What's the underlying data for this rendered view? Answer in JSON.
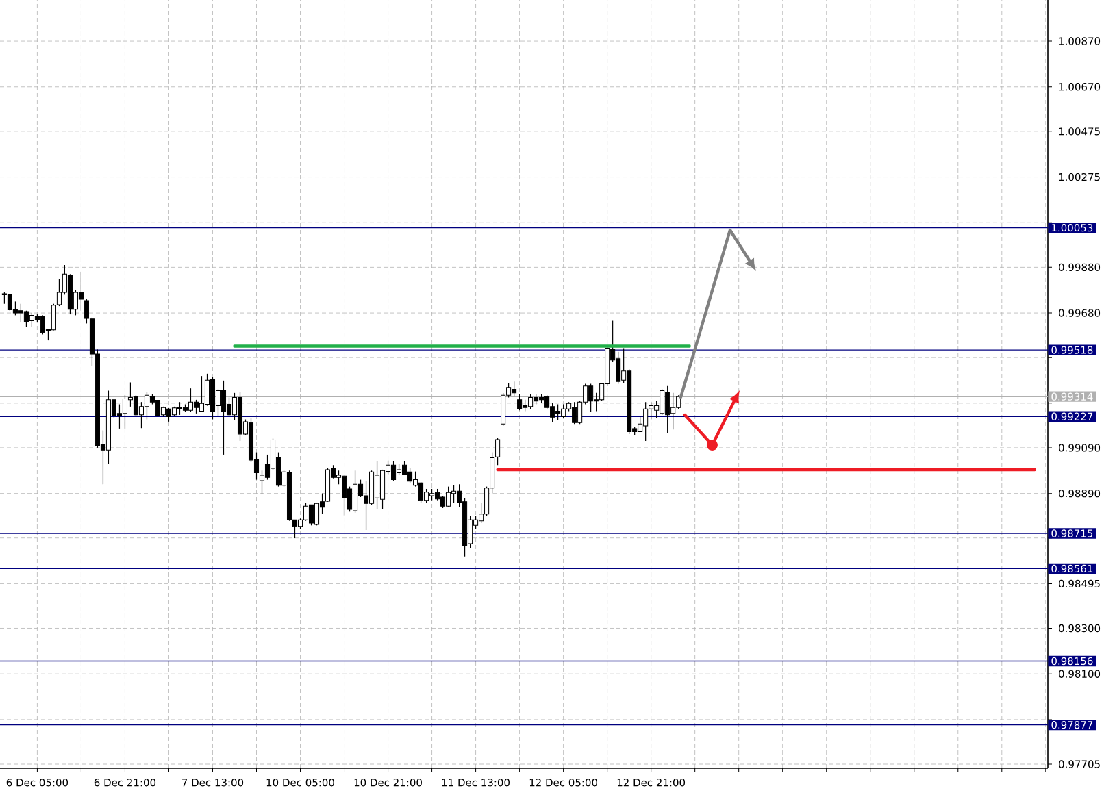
{
  "chart_data": {
    "type": "candlestick",
    "categories": [
      null,
      null,
      null,
      null,
      null,
      null,
      "6 Dec 05:00",
      null,
      null,
      null,
      null,
      null,
      null,
      null,
      null,
      null,
      null,
      null,
      null,
      null,
      null,
      null,
      "6 Dec 21:00",
      null,
      null,
      null,
      null,
      null,
      null,
      null,
      null,
      null,
      null,
      null,
      null,
      null,
      null,
      null,
      "7 Dec 13:00",
      null,
      null,
      null,
      null,
      null,
      null,
      null,
      null,
      null,
      null,
      null,
      null,
      null,
      null,
      null,
      "10 Dec 05:00",
      null,
      null,
      null,
      null,
      null,
      null,
      null,
      null,
      null,
      null,
      null,
      null,
      null,
      null,
      null,
      "10 Dec 21:00",
      null,
      null,
      null,
      null,
      null,
      null,
      null,
      null,
      null,
      null,
      null,
      null,
      null,
      null,
      null,
      "11 Dec 13:00",
      null,
      null,
      null,
      null,
      null,
      null,
      null,
      null,
      null,
      null,
      null,
      null,
      null,
      null,
      null,
      "12 Dec 05:00",
      null,
      null,
      null,
      null,
      null,
      null,
      null,
      null,
      null,
      null,
      null,
      null,
      null,
      null,
      null,
      "12 Dec 21:00",
      null,
      null,
      null,
      null,
      null,
      null,
      null,
      null,
      null,
      null,
      null,
      null,
      null,
      null,
      null,
      null,
      null,
      null,
      null,
      null,
      null,
      null,
      null,
      null,
      null,
      null,
      null,
      null,
      null,
      null,
      null,
      null,
      null,
      null,
      null,
      null,
      null,
      null,
      null,
      null,
      null,
      null,
      null,
      null,
      null,
      null,
      null,
      null,
      null,
      null,
      null,
      null,
      null,
      null,
      null,
      null,
      null,
      null,
      null,
      null,
      null,
      null,
      null,
      null,
      null,
      null,
      null,
      null,
      null,
      null,
      null,
      null
    ],
    "ohlc": [
      [
        0.99764,
        0.9977,
        0.9972,
        0.9976
      ],
      [
        0.9976,
        0.99764,
        0.9969,
        0.99694
      ],
      [
        0.99694,
        0.9973,
        0.9967,
        0.9968
      ],
      [
        0.9969,
        0.9972,
        0.9964,
        0.9968
      ],
      [
        0.99686,
        0.9969,
        0.9962,
        0.9964
      ],
      [
        0.99646,
        0.9968,
        0.9962,
        0.9967
      ],
      [
        0.99666,
        0.99674,
        0.9964,
        0.9965
      ],
      [
        0.99666,
        0.9967,
        0.99586,
        0.99594
      ],
      [
        0.9961,
        0.9961,
        0.9956,
        0.99604
      ],
      [
        0.99606,
        0.9972,
        0.99604,
        0.99714
      ],
      [
        0.99716,
        0.9983,
        0.9971,
        0.9977
      ],
      [
        0.9977,
        0.9989,
        0.9976,
        0.9985
      ],
      [
        0.99846,
        0.9985,
        0.99674,
        0.99696
      ],
      [
        0.99696,
        0.9978,
        0.9967,
        0.9977
      ],
      [
        0.9977,
        0.9986,
        0.9969,
        0.9974
      ],
      [
        0.99734,
        0.9974,
        0.99634,
        0.99656
      ],
      [
        0.99654,
        0.9966,
        0.99446,
        0.995
      ],
      [
        0.995,
        0.9952,
        0.9909,
        0.991
      ],
      [
        0.99106,
        0.99166,
        0.9893,
        0.9908
      ],
      [
        0.9908,
        0.9934,
        0.9902,
        0.993
      ],
      [
        0.993,
        0.993,
        0.9922,
        0.9923
      ],
      [
        0.9924,
        0.9928,
        0.99174,
        0.9923
      ],
      [
        0.9924,
        0.9932,
        0.99174,
        0.99304
      ],
      [
        0.993,
        0.99376,
        0.9927,
        0.9931
      ],
      [
        0.99314,
        0.9932,
        0.9923,
        0.99234
      ],
      [
        0.99234,
        0.9929,
        0.99176,
        0.9927
      ],
      [
        0.9927,
        0.99334,
        0.99214,
        0.9932
      ],
      [
        0.99314,
        0.99326,
        0.9928,
        0.9929
      ],
      [
        0.99298,
        0.993,
        0.99226,
        0.9923
      ],
      [
        0.99234,
        0.9927,
        0.99226,
        0.99266
      ],
      [
        0.9926,
        0.99264,
        0.99204,
        0.99226
      ],
      [
        0.99234,
        0.9927,
        0.9923,
        0.99264
      ],
      [
        0.99266,
        0.9929,
        0.99234,
        0.9926
      ],
      [
        0.99266,
        0.9928,
        0.99246,
        0.99254
      ],
      [
        0.99254,
        0.9935,
        0.99246,
        0.9929
      ],
      [
        0.9929,
        0.993,
        0.9924,
        0.99266
      ],
      [
        0.9925,
        0.99404,
        0.9925,
        0.99284
      ],
      [
        0.9928,
        0.99414,
        0.99274,
        0.99386
      ],
      [
        0.9939,
        0.994,
        0.99214,
        0.9925
      ],
      [
        0.99274,
        0.99346,
        0.9923,
        0.9934
      ],
      [
        0.9934,
        0.99384,
        0.9906,
        0.9925
      ],
      [
        0.9928,
        0.9931,
        0.99226,
        0.99234
      ],
      [
        0.99234,
        0.9933,
        0.9921,
        0.9931
      ],
      [
        0.9931,
        0.99334,
        0.9912,
        0.9915
      ],
      [
        0.9915,
        0.99214,
        0.99146,
        0.99204
      ],
      [
        0.992,
        0.9922,
        0.99026,
        0.99036
      ],
      [
        0.9904,
        0.9907,
        0.9895,
        0.9898
      ],
      [
        0.98946,
        0.9899,
        0.98886,
        0.9897
      ],
      [
        0.99016,
        0.9906,
        0.9895,
        0.9896
      ],
      [
        0.99,
        0.9913,
        0.9899,
        0.99124
      ],
      [
        0.99046,
        0.9907,
        0.9892,
        0.98926
      ],
      [
        0.98926,
        0.9899,
        0.9892,
        0.98984
      ],
      [
        0.9898,
        0.9899,
        0.9877,
        0.98774
      ],
      [
        0.98774,
        0.98774,
        0.98694,
        0.98746
      ],
      [
        0.98746,
        0.9878,
        0.98734,
        0.98774
      ],
      [
        0.98774,
        0.9885,
        0.9877,
        0.98834
      ],
      [
        0.9884,
        0.9884,
        0.9875,
        0.9876
      ],
      [
        0.98754,
        0.9885,
        0.9875,
        0.98846
      ],
      [
        0.98854,
        0.9889,
        0.988,
        0.9883
      ],
      [
        0.98856,
        0.99,
        0.98854,
        0.98994
      ],
      [
        0.99,
        0.99014,
        0.98956,
        0.9896
      ],
      [
        0.9896,
        0.9899,
        0.9893,
        0.9897
      ],
      [
        0.98966,
        0.9897,
        0.98794,
        0.9887
      ],
      [
        0.9891,
        0.9892,
        0.9881,
        0.9882
      ],
      [
        0.98814,
        0.9899,
        0.98806,
        0.9893
      ],
      [
        0.9893,
        0.9895,
        0.98874,
        0.9888
      ],
      [
        0.9888,
        0.98946,
        0.9873,
        0.98846
      ],
      [
        0.98846,
        0.9899,
        0.9884,
        0.98984
      ],
      [
        0.9887,
        0.9903,
        0.9882,
        0.9897
      ],
      [
        0.98864,
        0.98994,
        0.9882,
        0.9899
      ],
      [
        0.98986,
        0.99034,
        0.98974,
        0.99014
      ],
      [
        0.99014,
        0.9903,
        0.98946,
        0.9895
      ],
      [
        0.9898,
        0.9902,
        0.9897,
        0.98994
      ],
      [
        0.99014,
        0.9903,
        0.9897,
        0.98974
      ],
      [
        0.98984,
        0.99,
        0.98934,
        0.98944
      ],
      [
        0.98926,
        0.98986,
        0.9892,
        0.9895
      ],
      [
        0.98936,
        0.9894,
        0.9885,
        0.9886
      ],
      [
        0.9886,
        0.9891,
        0.9885,
        0.98896
      ],
      [
        0.9888,
        0.9891,
        0.9886,
        0.9889
      ],
      [
        0.98894,
        0.9891,
        0.9886,
        0.98866
      ],
      [
        0.98874,
        0.9888,
        0.98826,
        0.98834
      ],
      [
        0.98834,
        0.9892,
        0.9883,
        0.98894
      ],
      [
        0.9889,
        0.98926,
        0.9885,
        0.989
      ],
      [
        0.989,
        0.9893,
        0.9883,
        0.9885
      ],
      [
        0.98854,
        0.9887,
        0.98614,
        0.9866
      ],
      [
        0.9867,
        0.9879,
        0.9865,
        0.98774
      ],
      [
        0.9875,
        0.9879,
        0.98734,
        0.98774
      ],
      [
        0.9877,
        0.9885,
        0.9876,
        0.988
      ],
      [
        0.988,
        0.9892,
        0.9879,
        0.98914
      ],
      [
        0.98914,
        0.9907,
        0.9889,
        0.99046
      ],
      [
        0.9905,
        0.99134,
        0.99014,
        0.99126
      ],
      [
        0.99194,
        0.9933,
        0.99186,
        0.9932
      ],
      [
        0.9932,
        0.99374,
        0.9931,
        0.99354
      ],
      [
        0.99346,
        0.9938,
        0.99314,
        0.9933
      ],
      [
        0.993,
        0.99326,
        0.99254,
        0.9926
      ],
      [
        0.99276,
        0.993,
        0.9925,
        0.99266
      ],
      [
        0.9927,
        0.99326,
        0.9926,
        0.9931
      ],
      [
        0.9931,
        0.99326,
        0.9928,
        0.99294
      ],
      [
        0.9931,
        0.99326,
        0.99286,
        0.993
      ],
      [
        0.99314,
        0.9932,
        0.9926,
        0.99266
      ],
      [
        0.9927,
        0.99286,
        0.99204,
        0.99224
      ],
      [
        0.9925,
        0.9928,
        0.9921,
        0.9924
      ],
      [
        0.99226,
        0.9928,
        0.9922,
        0.9926
      ],
      [
        0.9926,
        0.9929,
        0.9925,
        0.99284
      ],
      [
        0.99266,
        0.9929,
        0.99194,
        0.992
      ],
      [
        0.992,
        0.99294,
        0.99194,
        0.9929
      ],
      [
        0.9929,
        0.9937,
        0.9928,
        0.9936
      ],
      [
        0.9936,
        0.9937,
        0.99246,
        0.99294
      ],
      [
        0.993,
        0.9933,
        0.9925,
        0.99294
      ],
      [
        0.993,
        0.99374,
        0.99294,
        0.9937
      ],
      [
        0.9937,
        0.9954,
        0.9936,
        0.99526
      ],
      [
        0.9952,
        0.99646,
        0.99466,
        0.99474
      ],
      [
        0.9948,
        0.9951,
        0.9937,
        0.9938
      ],
      [
        0.99386,
        0.99526,
        0.99374,
        0.99426
      ],
      [
        0.99426,
        0.99434,
        0.9915,
        0.9916
      ],
      [
        0.99174,
        0.9918,
        0.99146,
        0.9916
      ],
      [
        0.9916,
        0.9923,
        0.9916,
        0.99194
      ],
      [
        0.99186,
        0.9929,
        0.9912,
        0.9926
      ],
      [
        0.9926,
        0.9929,
        0.99214,
        0.99274
      ],
      [
        0.99254,
        0.99294,
        0.9922,
        0.99274
      ],
      [
        0.9924,
        0.99346,
        0.99234,
        0.9934
      ],
      [
        0.99334,
        0.9936,
        0.99154,
        0.99234
      ],
      [
        0.9924,
        0.9933,
        0.9917,
        0.99266
      ],
      [
        0.99266,
        0.9932,
        0.9926,
        0.99314
      ],
      null,
      null,
      null,
      null,
      null,
      null,
      null,
      null,
      null,
      null,
      null,
      null,
      null,
      null,
      null,
      null,
      null,
      null,
      null,
      null,
      null,
      null,
      null,
      null,
      null,
      null,
      null,
      null,
      null,
      null,
      null,
      null,
      null,
      null,
      null,
      null,
      null,
      null,
      null,
      null,
      null,
      null,
      null,
      null,
      null,
      null,
      null,
      null,
      null,
      null,
      null,
      null,
      null,
      null,
      null,
      null,
      null,
      null,
      null,
      null,
      null,
      null,
      null,
      null,
      null,
      null,
      null
    ],
    "series": [
      {
        "type": "line",
        "color": "#22b04a",
        "values": [
          null,
          null,
          null,
          null,
          null,
          null,
          null,
          null,
          null,
          null,
          null,
          null,
          null,
          null,
          null,
          null,
          null,
          null,
          null,
          null,
          null,
          null,
          null,
          null,
          null,
          null,
          null,
          null,
          null,
          null,
          null,
          null,
          null,
          null,
          null,
          null,
          null,
          null,
          null,
          null,
          null,
          null,
          0.99535,
          0.99535,
          0.99535,
          0.99535,
          0.99535,
          0.99535,
          0.99535,
          0.99535,
          0.99535,
          0.99535,
          0.99535,
          0.99535,
          0.99535,
          0.99535,
          0.99535,
          0.99535,
          0.99535,
          0.99535,
          0.99535,
          0.99535,
          0.99535,
          0.99535,
          0.99535,
          0.99535,
          0.99535,
          0.99535,
          0.99535,
          0.99535,
          0.99535,
          0.99535,
          0.99535,
          0.99535,
          0.99535,
          0.99535,
          0.99535,
          0.99535,
          0.99535,
          0.99535,
          0.99535,
          0.99535,
          0.99535,
          0.99535,
          0.99535,
          0.99535,
          0.99535,
          0.99535,
          0.99535,
          0.99535,
          0.99535,
          0.99535,
          0.99535,
          0.99535,
          0.99535,
          0.99535,
          0.99535,
          0.99535,
          0.99535,
          0.99535,
          0.99535,
          0.99535,
          0.99535,
          0.99535,
          0.99535,
          0.99535,
          0.99535,
          0.99535,
          0.99535,
          0.99535,
          0.99535,
          0.99535,
          0.99535,
          0.99535,
          0.99535,
          0.99535,
          0.99535,
          0.99535,
          0.99535,
          0.99535,
          0.99535,
          0.99535,
          0.99535,
          0.99535,
          0.99535,
          0.99535,
          null,
          null,
          null,
          null,
          null,
          null,
          null,
          null,
          null,
          null,
          null,
          null,
          null,
          null,
          null,
          null,
          null,
          null,
          null,
          null,
          null,
          null,
          null,
          null,
          null,
          null,
          null,
          null,
          null,
          null,
          null,
          null,
          null,
          null,
          null,
          null,
          null,
          null,
          null,
          null,
          null,
          null,
          null,
          null,
          null,
          null,
          null,
          null,
          null,
          null,
          null,
          null,
          null,
          null,
          null,
          null,
          null,
          null,
          null,
          null,
          null,
          null,
          null,
          null,
          null
        ]
      },
      {
        "type": "line",
        "color": "#ee1c25",
        "values": [
          null,
          null,
          null,
          null,
          null,
          null,
          null,
          null,
          null,
          null,
          null,
          null,
          null,
          null,
          null,
          null,
          null,
          null,
          null,
          null,
          null,
          null,
          null,
          null,
          null,
          null,
          null,
          null,
          null,
          null,
          null,
          null,
          null,
          null,
          null,
          null,
          null,
          null,
          null,
          null,
          null,
          null,
          null,
          null,
          null,
          null,
          null,
          null,
          null,
          null,
          null,
          null,
          null,
          null,
          null,
          null,
          null,
          null,
          null,
          null,
          null,
          null,
          null,
          null,
          null,
          null,
          null,
          null,
          null,
          null,
          null,
          null,
          null,
          null,
          null,
          null,
          null,
          null,
          null,
          null,
          null,
          null,
          null,
          null,
          null,
          null,
          null,
          null,
          null,
          null,
          0.98994,
          0.98994,
          0.98994,
          0.98994,
          0.98994,
          0.98994,
          0.98994,
          0.98994,
          0.98994,
          0.98994,
          0.98994,
          0.98994,
          0.98994,
          0.98994,
          0.98994,
          0.98994,
          0.98994,
          0.98994,
          0.98994,
          0.98994,
          0.98994,
          0.98994,
          0.98994,
          0.98994,
          0.98994,
          0.98994,
          0.98994,
          0.98994,
          0.98994,
          0.98994,
          0.98994,
          0.98994,
          0.98994,
          0.98994,
          0.98994,
          0.98994,
          0.98994,
          0.98994,
          0.98994,
          0.98994,
          0.98994,
          0.98994,
          0.98994,
          0.98994,
          0.98994,
          0.98994,
          0.98994,
          0.98994,
          0.98994,
          0.98994,
          0.98994,
          0.98994,
          0.98994,
          0.98994,
          0.98994,
          0.98994,
          0.98994,
          0.98994,
          0.98994,
          0.98994,
          0.98994,
          0.98994,
          0.98994,
          0.98994,
          0.98994,
          0.98994,
          0.98994,
          0.98994,
          0.98994,
          0.98994,
          0.98994,
          0.98994,
          0.98994,
          0.98994,
          0.98994,
          0.98994,
          0.98994,
          0.98994,
          0.98994,
          0.98994,
          0.98994,
          0.98994,
          0.98994,
          0.98994,
          0.98994,
          0.98994,
          0.98994,
          0.98994,
          0.98994,
          0.98994,
          0.98994,
          0.98994,
          0.98994,
          0.98994,
          0.98994,
          0.98994,
          0.98994,
          0.98994,
          0.98994,
          null,
          null
        ]
      }
    ],
    "ylim": [
      0.97687,
      1.0105
    ],
    "yticks": [
      {
        "value": 1.0087,
        "label": "1.00870"
      },
      {
        "value": 1.0067,
        "label": "1.00670"
      },
      {
        "value": 1.00475,
        "label": "1.00475"
      },
      {
        "value": 1.00275,
        "label": "1.00275"
      },
      {
        "value": 1.00075,
        "label": null
      },
      {
        "value": 0.9988,
        "label": "0.99880"
      },
      {
        "value": 0.9968,
        "label": "0.99680"
      },
      {
        "value": 0.99485,
        "label": null
      },
      {
        "value": 0.99285,
        "label": null
      },
      {
        "value": 0.9909,
        "label": "0.99090"
      },
      {
        "value": 0.9889,
        "label": "0.98890"
      },
      {
        "value": 0.98695,
        "label": null
      },
      {
        "value": 0.98495,
        "label": "0.98495"
      },
      {
        "value": 0.983,
        "label": "0.98300"
      },
      {
        "value": 0.981,
        "label": "0.98100"
      },
      {
        "value": 0.979,
        "label": null
      },
      {
        "value": 0.97705,
        "label": "0.97705"
      }
    ],
    "grid": true,
    "ref_lines": [
      {
        "axis": "y",
        "value": 1.00053,
        "label": "1.00053",
        "color": "#00007f"
      },
      {
        "axis": "y",
        "value": 0.99518,
        "label": "0.99518",
        "color": "#00007f"
      },
      {
        "axis": "y",
        "value": 0.99314,
        "label": "0.99314",
        "color": "#b0b0b0"
      },
      {
        "axis": "y",
        "value": 0.99227,
        "label": "0.99227",
        "color": "#00007f"
      },
      {
        "axis": "y",
        "value": 0.98715,
        "label": "0.98715",
        "color": "#00007f"
      },
      {
        "axis": "y",
        "value": 0.98561,
        "label": "0.98561",
        "color": "#00007f"
      },
      {
        "axis": "y",
        "value": 0.98156,
        "label": "0.98156",
        "color": "#00007f"
      },
      {
        "axis": "y",
        "value": 0.97877,
        "label": "0.97877",
        "color": "#00007f"
      }
    ]
  }
}
